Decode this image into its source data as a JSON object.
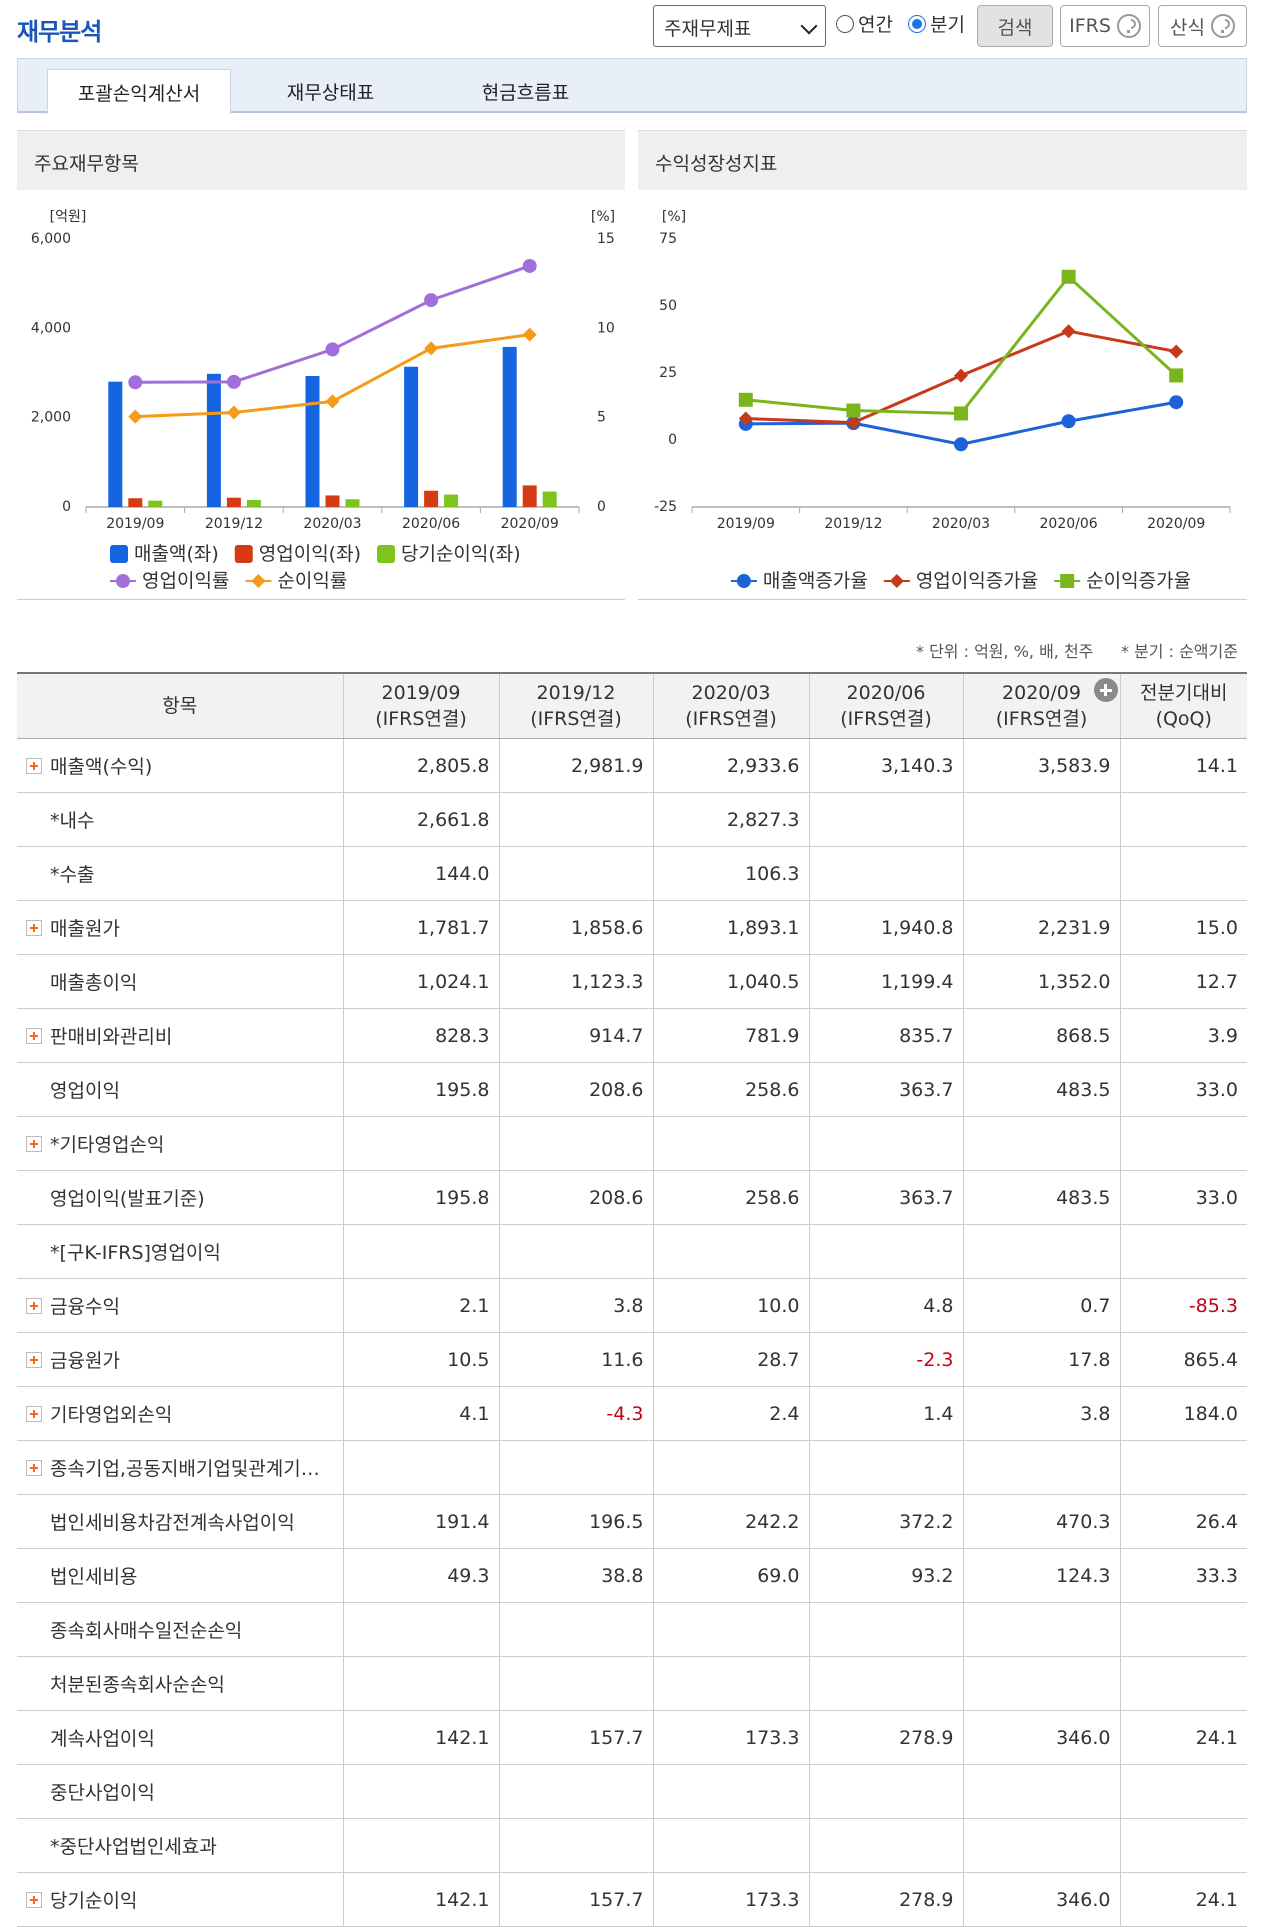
{
  "header": {
    "title": "재무분석",
    "statement_select": "주재무제표",
    "period_options": [
      "연간",
      "분기"
    ],
    "period_selected": 1,
    "buttons": [
      "검색",
      "IFRS",
      "산식"
    ]
  },
  "tabs": {
    "items": [
      "포괄손익계산서",
      "재무상태표",
      "현금흐름표"
    ],
    "active": 0
  },
  "chart_data": [
    {
      "type": "bar",
      "title": "주요재무항목",
      "y_unit": "[억원]",
      "y2_unit": "[%]",
      "categories": [
        "2019/09",
        "2019/12",
        "2020/03",
        "2020/06",
        "2020/09"
      ],
      "ylim": [
        0,
        6000
      ],
      "yticks": [
        0,
        {
          "value": 2000,
          "label": "2,000"
        },
        {
          "value": 4000,
          "label": "4,000"
        },
        {
          "value": 6000,
          "label": "6,000"
        }
      ],
      "y2lim": [
        0,
        15
      ],
      "y2ticks": [
        0,
        5,
        10,
        15
      ],
      "legend": "bottom-left",
      "series": [
        {
          "name": "매출액(좌)",
          "type": "bar",
          "color": "#1565e0",
          "values": [
            2805.8,
            2981.9,
            2933.6,
            3140.3,
            3583.9
          ]
        },
        {
          "name": "영업이익(좌)",
          "type": "bar",
          "color": "#d63a12",
          "values": [
            195.8,
            208.6,
            258.6,
            363.7,
            483.5
          ]
        },
        {
          "name": "당기순이익(좌)",
          "type": "bar",
          "color": "#7ec41f",
          "values": [
            142.1,
            157.7,
            173.3,
            278.9,
            346.0
          ]
        },
        {
          "name": "영업이익률",
          "type": "line",
          "axis": "y2",
          "marker": "circle",
          "color": "#a26ed9",
          "values": [
            6.98,
            7.0,
            8.82,
            11.58,
            13.49
          ]
        },
        {
          "name": "순이익률",
          "type": "line",
          "axis": "y2",
          "marker": "diamond",
          "color": "#f59a1a",
          "values": [
            5.06,
            5.29,
            5.91,
            8.88,
            9.65
          ]
        }
      ]
    },
    {
      "type": "line",
      "title": "수익성장성지표",
      "y_unit": "[%]",
      "categories": [
        "2019/09",
        "2019/12",
        "2020/03",
        "2020/06",
        "2020/09"
      ],
      "ylim": [
        -25,
        75
      ],
      "yticks": [
        -25,
        0,
        25,
        50,
        75
      ],
      "legend": "bottom",
      "series": [
        {
          "name": "매출액증가율",
          "marker": "circle",
          "color": "#1d62d6",
          "values": [
            6.0,
            6.3,
            -1.6,
            7.0,
            14.1
          ]
        },
        {
          "name": "영업이익증가율",
          "marker": "diamond",
          "color": "#c8391a",
          "values": [
            8.0,
            6.5,
            24.0,
            40.6,
            33.0
          ]
        },
        {
          "name": "순이익증가율",
          "marker": "square",
          "color": "#7ab51d",
          "values": [
            15.0,
            11.0,
            9.9,
            60.9,
            24.1
          ]
        }
      ]
    }
  ],
  "notes": [
    "* 단위 : 억원, %, 배, 천주",
    "* 분기 : 순액기준"
  ],
  "table": {
    "columns": [
      [
        "항목"
      ],
      [
        "2019/09",
        "(IFRS연결)"
      ],
      [
        "2019/12",
        "(IFRS연결)"
      ],
      [
        "2020/03",
        "(IFRS연결)"
      ],
      [
        "2020/06",
        "(IFRS연결)"
      ],
      [
        "2020/09",
        "(IFRS연결)"
      ],
      [
        "전분기대비",
        "(QoQ)"
      ]
    ],
    "rows": [
      {
        "label": "매출액(수익)",
        "expandable": true,
        "values": [
          "2,805.8",
          "2,981.9",
          "2,933.6",
          "3,140.3",
          "3,583.9",
          "14.1"
        ]
      },
      {
        "label": "*내수",
        "expandable": false,
        "values": [
          "2,661.8",
          null,
          "2,827.3",
          null,
          null,
          null
        ]
      },
      {
        "label": "*수출",
        "expandable": false,
        "values": [
          "144.0",
          null,
          "106.3",
          null,
          null,
          null
        ]
      },
      {
        "label": "매출원가",
        "expandable": true,
        "values": [
          "1,781.7",
          "1,858.6",
          "1,893.1",
          "1,940.8",
          "2,231.9",
          "15.0"
        ]
      },
      {
        "label": "매출총이익",
        "expandable": false,
        "values": [
          "1,024.1",
          "1,123.3",
          "1,040.5",
          "1,199.4",
          "1,352.0",
          "12.7"
        ]
      },
      {
        "label": "판매비와관리비",
        "expandable": true,
        "values": [
          "828.3",
          "914.7",
          "781.9",
          "835.7",
          "868.5",
          "3.9"
        ]
      },
      {
        "label": "영업이익",
        "expandable": false,
        "values": [
          "195.8",
          "208.6",
          "258.6",
          "363.7",
          "483.5",
          "33.0"
        ]
      },
      {
        "label": "*기타영업손익",
        "expandable": true,
        "values": [
          null,
          null,
          null,
          null,
          null,
          null
        ]
      },
      {
        "label": "영업이익(발표기준)",
        "expandable": false,
        "values": [
          "195.8",
          "208.6",
          "258.6",
          "363.7",
          "483.5",
          "33.0"
        ]
      },
      {
        "label": "*[구K-IFRS]영업이익",
        "expandable": false,
        "values": [
          null,
          null,
          null,
          null,
          null,
          null
        ]
      },
      {
        "label": "금융수익",
        "expandable": true,
        "values": [
          "2.1",
          "3.8",
          "10.0",
          "4.8",
          "0.7",
          "-85.3"
        ]
      },
      {
        "label": "금융원가",
        "expandable": true,
        "values": [
          "10.5",
          "11.6",
          "28.7",
          "-2.3",
          "17.8",
          "865.4"
        ]
      },
      {
        "label": "기타영업외손익",
        "expandable": true,
        "values": [
          "4.1",
          "-4.3",
          "2.4",
          "1.4",
          "3.8",
          "184.0"
        ]
      },
      {
        "label": "종속기업,공동지배기업및관계기…",
        "expandable": true,
        "values": [
          null,
          null,
          null,
          null,
          null,
          null
        ]
      },
      {
        "label": "법인세비용차감전계속사업이익",
        "expandable": false,
        "values": [
          "191.4",
          "196.5",
          "242.2",
          "372.2",
          "470.3",
          "26.4"
        ]
      },
      {
        "label": "법인세비용",
        "expandable": false,
        "values": [
          "49.3",
          "38.8",
          "69.0",
          "93.2",
          "124.3",
          "33.3"
        ]
      },
      {
        "label": "종속회사매수일전순손익",
        "expandable": false,
        "values": [
          null,
          null,
          null,
          null,
          null,
          null
        ]
      },
      {
        "label": "처분된종속회사순손익",
        "expandable": false,
        "values": [
          null,
          null,
          null,
          null,
          null,
          null
        ]
      },
      {
        "label": "계속사업이익",
        "expandable": false,
        "values": [
          "142.1",
          "157.7",
          "173.3",
          "278.9",
          "346.0",
          "24.1"
        ]
      },
      {
        "label": "중단사업이익",
        "expandable": false,
        "values": [
          null,
          null,
          null,
          null,
          null,
          null
        ]
      },
      {
        "label": "*중단사업법인세효과",
        "expandable": false,
        "values": [
          null,
          null,
          null,
          null,
          null,
          null
        ]
      },
      {
        "label": "당기순이익",
        "expandable": true,
        "values": [
          "142.1",
          "157.7",
          "173.3",
          "278.9",
          "346.0",
          "24.1"
        ]
      }
    ]
  }
}
